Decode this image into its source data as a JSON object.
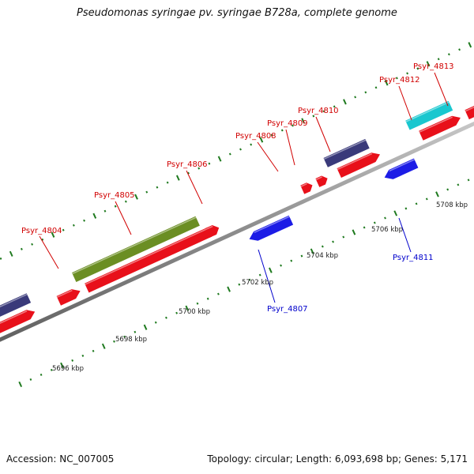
{
  "title": "Pseudomonas syringae pv. syringae B728a, complete genome",
  "footer": {
    "accession_label": "Accession:",
    "accession": "NC_007005",
    "info": "Topology: circular; Length: 6,093,698 bp; Genes: 5,171"
  },
  "colors": {
    "backbone": "#8f8f8f",
    "gene_red": "#e8101a",
    "gene_blue": "#1c1ce6",
    "gene_olive": "#6b8e23",
    "gene_slate": "#3a3a7a",
    "gene_cyan": "#19c7cf",
    "gene_orange": "#f5a623",
    "tick_green": "#1f7a1f",
    "label_red": "#d10000",
    "label_blue": "#0000cc"
  },
  "kbp_labels": [
    "5696 kbp",
    "5698 kbp",
    "5700 kbp",
    "5702 kbp",
    "5704 kbp",
    "5706 kbp",
    "5708 kbp"
  ],
  "gene_labels_top": [
    "Psyr_4804",
    "Psyr_4805",
    "Psyr_4806",
    "Psyr_4808",
    "Psyr_4809",
    "Psyr_4810",
    "Psyr_4812",
    "Psyr_4813"
  ],
  "gene_labels_bottom": [
    "Psyr_4807",
    "Psyr_4811"
  ]
}
